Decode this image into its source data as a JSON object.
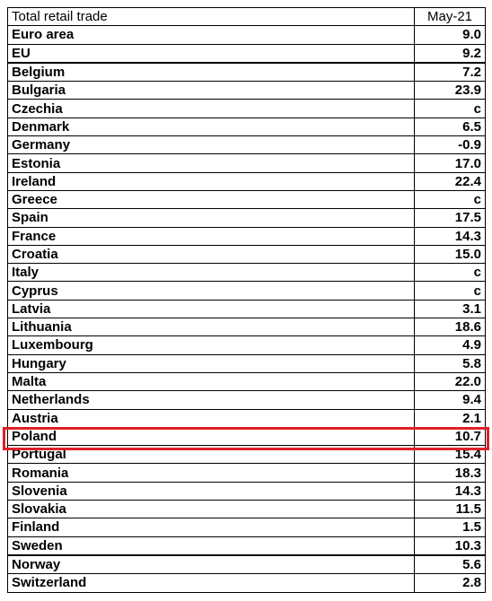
{
  "table": {
    "header": {
      "label": "Total retail trade",
      "period": "May-21"
    },
    "highlight_color": "#e0202a",
    "highlighted_row": "Poland",
    "rows": [
      {
        "name": "Euro area",
        "value": "9.0"
      },
      {
        "name": "EU",
        "value": "9.2"
      },
      {
        "name": "Belgium",
        "value": "7.2"
      },
      {
        "name": "Bulgaria",
        "value": "23.9"
      },
      {
        "name": "Czechia",
        "value": "c"
      },
      {
        "name": "Denmark",
        "value": "6.5"
      },
      {
        "name": "Germany",
        "value": "-0.9"
      },
      {
        "name": "Estonia",
        "value": "17.0"
      },
      {
        "name": "Ireland",
        "value": "22.4"
      },
      {
        "name": "Greece",
        "value": "c"
      },
      {
        "name": "Spain",
        "value": "17.5"
      },
      {
        "name": "France",
        "value": "14.3"
      },
      {
        "name": "Croatia",
        "value": "15.0"
      },
      {
        "name": "Italy",
        "value": "c"
      },
      {
        "name": "Cyprus",
        "value": "c"
      },
      {
        "name": "Latvia",
        "value": "3.1"
      },
      {
        "name": "Lithuania",
        "value": "18.6"
      },
      {
        "name": "Luxembourg",
        "value": "4.9"
      },
      {
        "name": "Hungary",
        "value": "5.8"
      },
      {
        "name": "Malta",
        "value": "22.0"
      },
      {
        "name": "Netherlands",
        "value": "9.4"
      },
      {
        "name": "Austria",
        "value": "2.1"
      },
      {
        "name": "Poland",
        "value": "10.7"
      },
      {
        "name": "Portugal",
        "value": "15.4"
      },
      {
        "name": "Romania",
        "value": "18.3"
      },
      {
        "name": "Slovenia",
        "value": "14.3"
      },
      {
        "name": "Slovakia",
        "value": "11.5"
      },
      {
        "name": "Finland",
        "value": "1.5"
      },
      {
        "name": "Sweden",
        "value": "10.3"
      },
      {
        "name": "Norway",
        "value": "5.6"
      },
      {
        "name": "Switzerland",
        "value": "2.8"
      }
    ]
  }
}
